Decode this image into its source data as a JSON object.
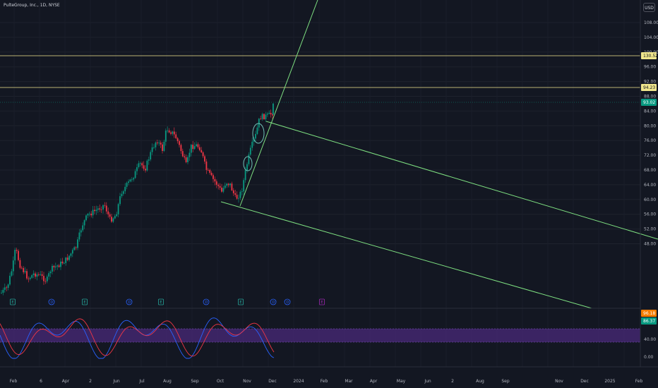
{
  "symbol_title": "PulteGroup, Inc., 1D, NYSE",
  "currency": "USD",
  "price_axis": {
    "ticks": [
      "108.00",
      "104.00",
      "100.00",
      "96.00",
      "92.00",
      "88.00",
      "84.00",
      "80.00",
      "76.00",
      "72.00",
      "68.00",
      "64.00",
      "60.00",
      "56.00",
      "52.00",
      "48.00"
    ],
    "markers": [
      {
        "label": "130.52",
        "color": "#f0e68c"
      },
      {
        "label": "94.23",
        "color": "#f0e68c"
      },
      {
        "label": "93.02",
        "color": "#089981"
      }
    ]
  },
  "indicator_axis": {
    "ticks": [
      "40.00",
      "0.00"
    ],
    "markers": [
      {
        "label": "96.18",
        "color": "#f57c00"
      },
      {
        "label": "86.37",
        "color": "#089981"
      }
    ]
  },
  "time_axis": [
    "Feb",
    "6",
    "Apr",
    "2",
    "Jun",
    "Jul",
    "Aug",
    "Sep",
    "Oct",
    "Nov",
    "Dec",
    "2024",
    "Feb",
    "Mar",
    "Apr",
    "May",
    "Jun",
    "2",
    "Aug",
    "Sep",
    "Nov",
    "Dec",
    "2025",
    "Feb"
  ],
  "event_markers": [
    "E",
    "D",
    "E",
    "D",
    "E",
    "D",
    "E",
    "D",
    "D",
    "E"
  ],
  "colors": {
    "up": "#089981",
    "down": "#f23645",
    "trendline": "#7ee081",
    "hline": "#f0e68c",
    "k_line": "#2962ff",
    "d_line": "#f23645",
    "band": "#4a2a7a"
  }
}
